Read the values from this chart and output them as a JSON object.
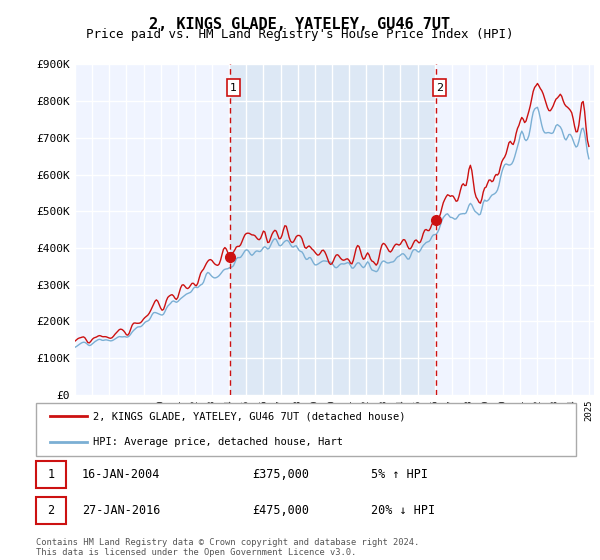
{
  "title": "2, KINGS GLADE, YATELEY, GU46 7UT",
  "subtitle": "Price paid vs. HM Land Registry's House Price Index (HPI)",
  "ylim": [
    0,
    900000
  ],
  "yticks": [
    0,
    100000,
    200000,
    300000,
    400000,
    500000,
    600000,
    700000,
    800000,
    900000
  ],
  "ytick_labels": [
    "£0",
    "£100K",
    "£200K",
    "£300K",
    "£400K",
    "£500K",
    "£600K",
    "£700K",
    "£800K",
    "£900K"
  ],
  "x_start_year": 1995,
  "x_end_year": 2025,
  "sale1_date": 2004.04,
  "sale1_price": 375000,
  "sale1_label": "1",
  "sale2_date": 2016.07,
  "sale2_price": 475000,
  "sale2_label": "2",
  "legend_entry1": "2, KINGS GLADE, YATELEY, GU46 7UT (detached house)",
  "legend_entry2": "HPI: Average price, detached house, Hart",
  "table_row1": [
    "1",
    "16-JAN-2004",
    "£375,000",
    "5% ↑ HPI"
  ],
  "table_row2": [
    "2",
    "27-JAN-2016",
    "£475,000",
    "20% ↓ HPI"
  ],
  "footer": "Contains HM Land Registry data © Crown copyright and database right 2024.\nThis data is licensed under the Open Government Licence v3.0.",
  "hpi_color": "#7bafd4",
  "price_color": "#cc1111",
  "vline_color": "#cc1111",
  "bg_before_sale1": "#f0f4ff",
  "bg_between_sales": "#ddeeff",
  "bg_after_sale2": "#f0f4ff",
  "grid_color": "#cccccc",
  "title_fontsize": 11,
  "subtitle_fontsize": 9,
  "tick_fontsize": 8
}
